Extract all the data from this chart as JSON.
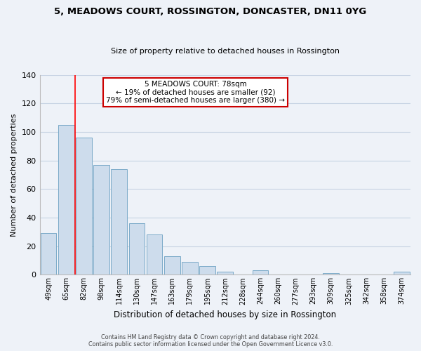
{
  "title1": "5, MEADOWS COURT, ROSSINGTON, DONCASTER, DN11 0YG",
  "title2": "Size of property relative to detached houses in Rossington",
  "xlabel": "Distribution of detached houses by size in Rossington",
  "ylabel": "Number of detached properties",
  "bar_labels": [
    "49sqm",
    "65sqm",
    "82sqm",
    "98sqm",
    "114sqm",
    "130sqm",
    "147sqm",
    "163sqm",
    "179sqm",
    "195sqm",
    "212sqm",
    "228sqm",
    "244sqm",
    "260sqm",
    "277sqm",
    "293sqm",
    "309sqm",
    "325sqm",
    "342sqm",
    "358sqm",
    "374sqm"
  ],
  "bar_heights": [
    29,
    105,
    96,
    77,
    74,
    36,
    28,
    13,
    9,
    6,
    2,
    0,
    3,
    0,
    0,
    0,
    1,
    0,
    0,
    0,
    2
  ],
  "bar_color": "#cddcec",
  "bar_edge_color": "#7aaac8",
  "red_line_x": 1.5,
  "ylim": [
    0,
    140
  ],
  "yticks": [
    0,
    20,
    40,
    60,
    80,
    100,
    120,
    140
  ],
  "annotation_line1": "5 MEADOWS COURT: 78sqm",
  "annotation_line2": "← 19% of detached houses are smaller (92)",
  "annotation_line3": "79% of semi-detached houses are larger (380) →",
  "annotation_box_color": "#ffffff",
  "annotation_border_color": "#cc0000",
  "grid_color": "#c8d4e4",
  "background_color": "#eef2f8",
  "footer1": "Contains HM Land Registry data © Crown copyright and database right 2024.",
  "footer2": "Contains public sector information licensed under the Open Government Licence v3.0."
}
